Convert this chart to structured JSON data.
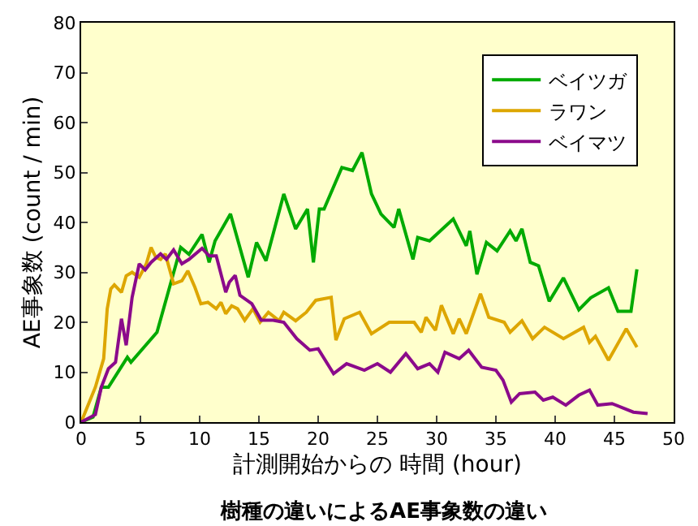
{
  "chart_data": {
    "type": "line",
    "title": "樹種の違いによるAE事象数の違い",
    "xlabel": "計測開始からの 時間 (hour)",
    "ylabel": "AE事象数 (count / min)",
    "xlim": [
      0,
      50
    ],
    "xticks": [
      0,
      5,
      10,
      15,
      20,
      25,
      30,
      35,
      40,
      45,
      50
    ],
    "ylim": [
      0,
      80
    ],
    "yticks": [
      0,
      10,
      20,
      30,
      40,
      50,
      60,
      70,
      80
    ],
    "grid": false,
    "legend": "top right",
    "marker": "none",
    "line_style": "solid",
    "series": [
      {
        "name": "ベイツガ",
        "color": "#00aa00",
        "x": [
          0,
          1,
          1.7,
          2.3,
          3.9,
          4.2,
          6.4,
          8.4,
          9.1,
          10.2,
          10.8,
          11.3,
          12.6,
          14.1,
          14.8,
          15.6,
          17.1,
          18.1,
          19.1,
          19.6,
          20.1,
          20.5,
          22,
          22.9,
          23.7,
          24.5,
          25.3,
          26.4,
          26.8,
          28,
          28.4,
          29.4,
          31.4,
          32.5,
          32.8,
          33.4,
          34.2,
          35.1,
          36.2,
          36.7,
          37.2,
          37.9,
          38.6,
          39.5,
          40.7,
          42,
          43,
          44.5,
          45.3,
          46.4,
          46.9
        ],
        "values": [
          0,
          1,
          7,
          7,
          13,
          12,
          18,
          35,
          33.6,
          37.6,
          32,
          36.3,
          41.7,
          29,
          36,
          32.3,
          45.7,
          38.7,
          42.7,
          32,
          42.7,
          42.7,
          51,
          50.4,
          54,
          45.7,
          41.7,
          39,
          42.7,
          32.6,
          37,
          36.3,
          40.7,
          35.3,
          38.3,
          29.6,
          36,
          34.3,
          38.3,
          36.3,
          38.7,
          32,
          31.3,
          24.2,
          28.9,
          22.5,
          24.9,
          26.9,
          22.2,
          22.2,
          30.6
        ]
      },
      {
        "name": "ラワン",
        "color": "#dda600",
        "x": [
          0,
          1.2,
          1.9,
          2.2,
          2.5,
          2.8,
          3.4,
          3.8,
          4.3,
          4.9,
          5.5,
          5.9,
          6.3,
          6.7,
          7.1,
          7.8,
          8.5,
          9,
          9.6,
          10.1,
          10.7,
          11.4,
          11.8,
          12.2,
          12.7,
          13.2,
          13.8,
          14.5,
          15.1,
          15.8,
          16.7,
          17.1,
          18.1,
          19,
          19.8,
          21.1,
          21.5,
          22.2,
          23.5,
          24.5,
          26,
          28.1,
          28.7,
          29.1,
          29.9,
          30.4,
          31.4,
          31.9,
          32.5,
          33.7,
          34.4,
          35.7,
          36.2,
          37.2,
          38.1,
          39.1,
          40.7,
          42.4,
          42.9,
          43.4,
          44.5,
          46,
          46.9
        ],
        "values": [
          0,
          7,
          12.7,
          22.7,
          26.7,
          27.5,
          26,
          29.3,
          30,
          29,
          31.7,
          35,
          33,
          32.6,
          33.7,
          27.7,
          28.3,
          30.3,
          27,
          23.7,
          24,
          22.7,
          24,
          21.7,
          23.3,
          22.7,
          20.4,
          22.7,
          20,
          22,
          20.3,
          22,
          20.3,
          22,
          24.4,
          25,
          16.4,
          20.7,
          22,
          17.7,
          20,
          20,
          18,
          21,
          18.4,
          23.4,
          17.7,
          20.7,
          17.7,
          25.7,
          21,
          20,
          18,
          20.3,
          16.7,
          19,
          16.7,
          19,
          16,
          17.2,
          12.4,
          18.7,
          15
        ]
      },
      {
        "name": "ベイマツ",
        "color": "#8b0a8b",
        "x": [
          0,
          1.2,
          1.7,
          2.3,
          2.9,
          3.4,
          3.8,
          4.3,
          4.9,
          5.4,
          5.9,
          6.7,
          7.2,
          7.8,
          8.5,
          9.1,
          10.2,
          10.8,
          11.4,
          12.2,
          12.5,
          13,
          13.4,
          14.4,
          15.2,
          16.2,
          17.1,
          18.2,
          19.3,
          20,
          21.3,
          22.4,
          23.9,
          25,
          26.1,
          27.4,
          28.4,
          29.4,
          30.1,
          30.7,
          31.9,
          32.7,
          33.8,
          35,
          35.6,
          36.3,
          37,
          38.3,
          39,
          39.8,
          40.9,
          42,
          42.9,
          43.6,
          44.8,
          46.6,
          47.8
        ],
        "values": [
          0,
          1.5,
          7,
          10.7,
          12,
          20.7,
          15.4,
          25,
          31.7,
          30.5,
          32,
          33.7,
          32.6,
          34.5,
          31.7,
          32.6,
          34.8,
          33.3,
          33.3,
          26,
          28,
          29.4,
          25.4,
          23.7,
          20.4,
          20.4,
          20,
          16.7,
          14.4,
          14.7,
          9.7,
          11.7,
          10.4,
          11.7,
          10,
          13.7,
          10.7,
          11.7,
          10,
          14,
          12.7,
          14.4,
          11,
          10.4,
          8.4,
          4,
          5.7,
          6,
          4.4,
          5,
          3.4,
          5.4,
          6.4,
          3.4,
          3.7,
          2,
          1.7
        ]
      }
    ]
  }
}
